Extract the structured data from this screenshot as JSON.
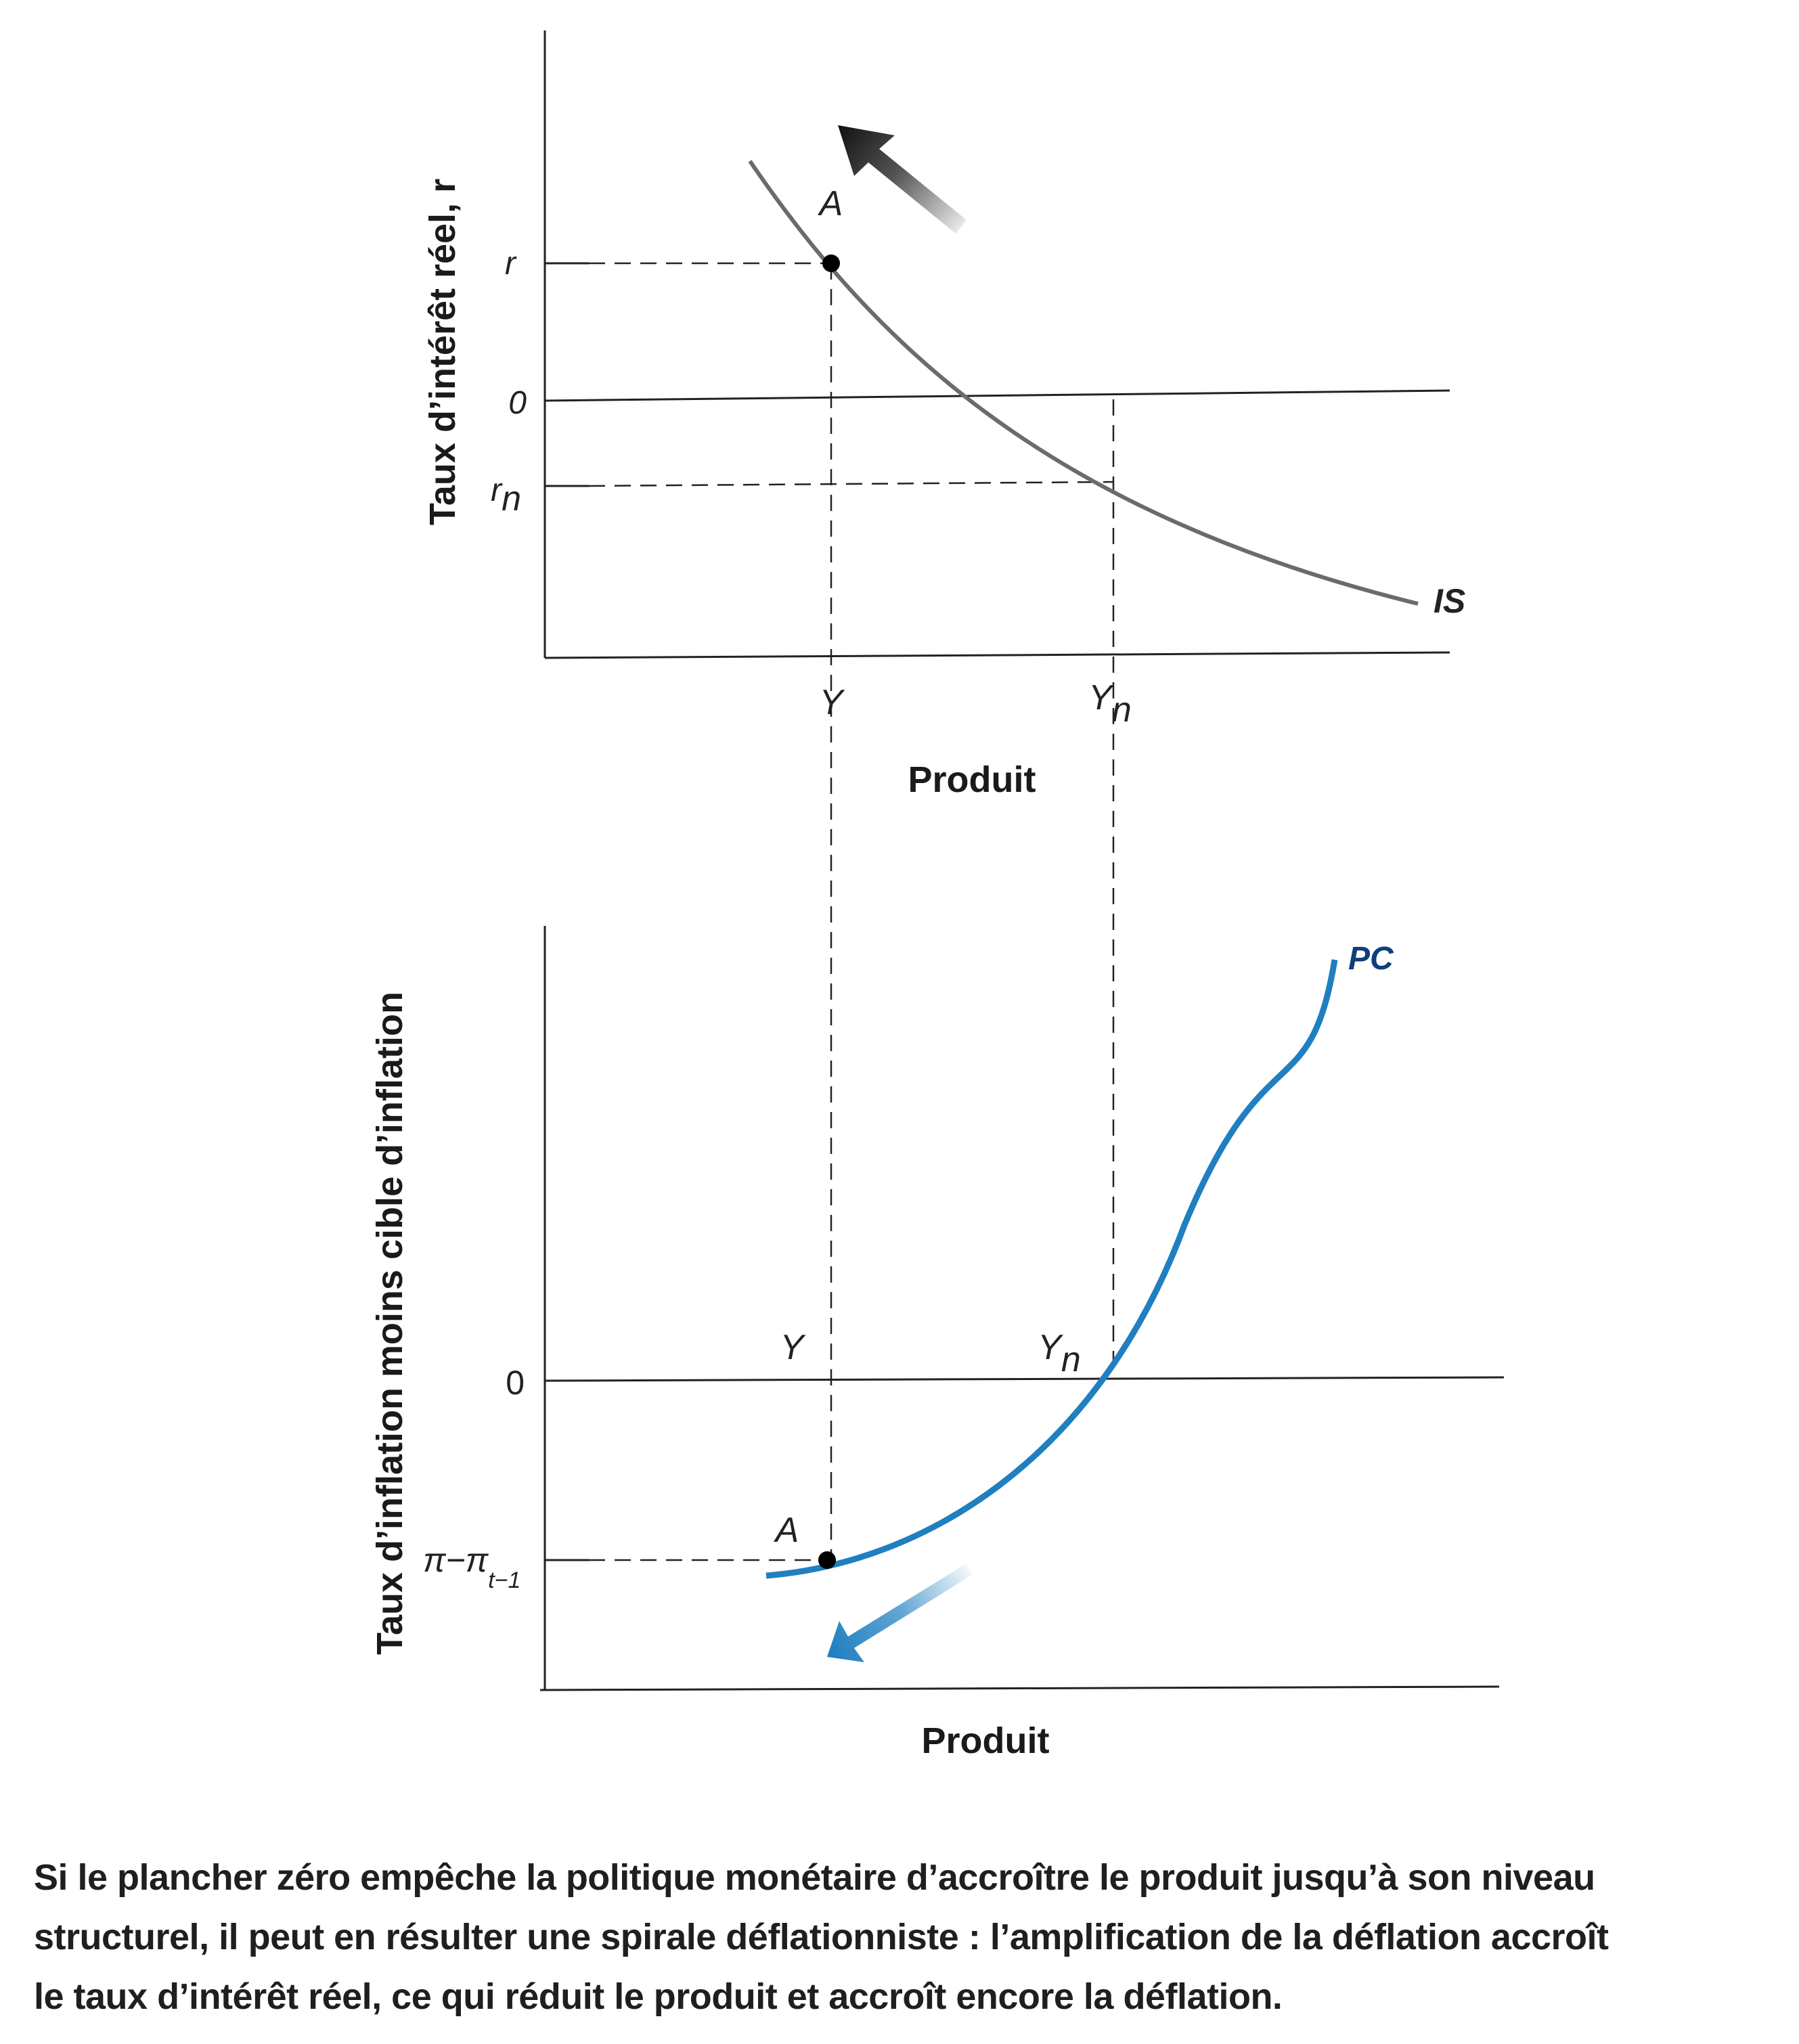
{
  "top_chart": {
    "ylabel": "Taux d’intérêt réel, r",
    "xlabel": "Produit",
    "tick_r": "r",
    "tick_zero": "0",
    "tick_rn_main": "r",
    "tick_rn_sub": "n",
    "tick_Y": "Y",
    "tick_Yn_main": "Y",
    "tick_Yn_sub": "n",
    "point_label": "A",
    "curve_label": "IS",
    "colors": {
      "curve": "#6b6b6b",
      "arrow": "#1a1a1a"
    }
  },
  "bottom_chart": {
    "ylabel": "Taux d’inflation moins cible d’inflation",
    "xlabel": "Produit",
    "tick_zero": "0",
    "tick_pi_main": "π−π",
    "tick_pi_sub": "t−1",
    "label_Y": "Y",
    "label_Yn_main": "Y",
    "label_Yn_sub": "n",
    "point_label": "A",
    "curve_label": "PC",
    "colors": {
      "curve": "#1f7fc0",
      "curve_label": "#0d3f7a",
      "arrow": "#1f7fc0"
    }
  },
  "caption": {
    "line1": "Si le plancher zéro empêche la politique monétaire d’accroître le produit jusqu’à son niveau",
    "line2": "structurel, il peut en résulter une spirale déflationniste : l’amplification de la déflation accroît",
    "line3": "le taux d’intérêt réel, ce qui réduit le produit et accroît encore la déflation."
  }
}
